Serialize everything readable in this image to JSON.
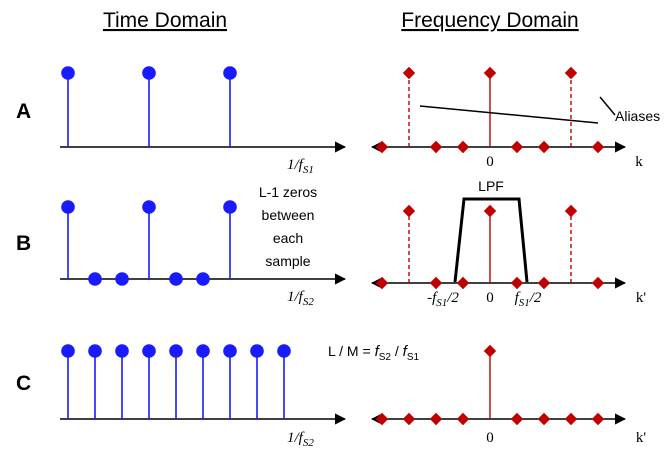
{
  "headings": {
    "time": "Time Domain",
    "frequency": "Frequency  Domain"
  },
  "rows": {
    "a": {
      "label": "A",
      "period_label": {
        "main": "1/f",
        "sub": "S1"
      }
    },
    "b": {
      "label": "B",
      "period_label": {
        "main": "1/f",
        "sub": "S2"
      }
    },
    "c": {
      "label": "C",
      "period_label": {
        "main": "1/f",
        "sub": "S2"
      }
    }
  },
  "freq_axis": {
    "a": {
      "zero": "0",
      "var": "k"
    },
    "b": {
      "zero": "0",
      "var": "k'",
      "neg_edge": {
        "pre": "-f",
        "sub": "S1",
        "post": "/2"
      },
      "pos_edge": {
        "pre": "f",
        "sub": "S1",
        "post": "/2"
      }
    },
    "c": {
      "zero": "0",
      "var": "k'"
    }
  },
  "annotations": {
    "aliases": "Aliases",
    "zeros_note": [
      "L-1 zeros",
      "between",
      "each",
      "sample"
    ],
    "lpf": "LPF",
    "ratio": {
      "lhs": "L / M = ",
      "num_main": "f",
      "num_sub": "S2",
      "sep": " / ",
      "den_main": "f",
      "den_sub": "S1"
    }
  },
  "colors": {
    "time_stem": "#1a1aff",
    "freq_stem": "#c00000",
    "axis": "#000000",
    "text": "#000000"
  }
}
